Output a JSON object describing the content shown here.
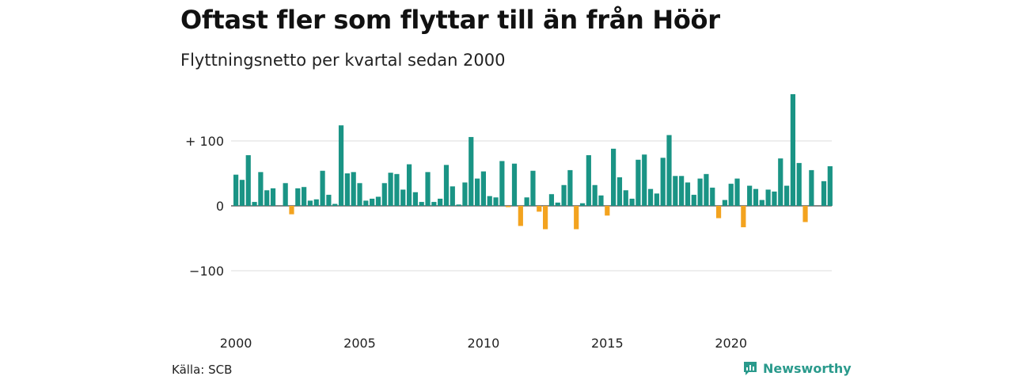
{
  "title": "Oftast fler som flyttar till än från Höör",
  "subtitle": "Flyttningsnetto per kvartal sedan 2000",
  "source": "Källa: SCB",
  "brand": "Newsworthy",
  "colors": {
    "positive": "#1a9485",
    "negative": "#f3a31f",
    "grid": "#dddddd",
    "brand": "#2a9a8c"
  },
  "chart_data": {
    "type": "bar",
    "title": "Oftast fler som flyttar till än från Höör",
    "subtitle": "Flyttningsnetto per kvartal sedan 2000",
    "xlabel": "",
    "ylabel": "",
    "start_year": 2000,
    "periods_per_year": 4,
    "x_ticks": [
      "2000",
      "2005",
      "2010",
      "2015",
      "2020"
    ],
    "y_ticks": [
      {
        "value": 100,
        "label": "+ 100"
      },
      {
        "value": 0,
        "label": "0"
      },
      {
        "value": -100,
        "label": "−100"
      }
    ],
    "ylim": [
      -150,
      170
    ],
    "grid": true,
    "values": [
      48,
      40,
      78,
      6,
      52,
      24,
      27,
      0,
      35,
      -13,
      27,
      29,
      8,
      10,
      54,
      17,
      3,
      124,
      50,
      52,
      35,
      8,
      11,
      14,
      35,
      51,
      49,
      25,
      64,
      21,
      6,
      52,
      6,
      11,
      63,
      30,
      2,
      36,
      106,
      42,
      53,
      15,
      13,
      69,
      -2,
      65,
      -31,
      13,
      54,
      -9,
      -36,
      18,
      5,
      32,
      55,
      -36,
      4,
      78,
      32,
      16,
      -15,
      88,
      44,
      24,
      11,
      71,
      79,
      26,
      19,
      74,
      109,
      46,
      46,
      36,
      17,
      42,
      49,
      28,
      -19,
      9,
      34,
      42,
      -33,
      31,
      26,
      9,
      25,
      22,
      73,
      31,
      172,
      66,
      -25,
      55,
      0,
      38,
      61
    ]
  }
}
